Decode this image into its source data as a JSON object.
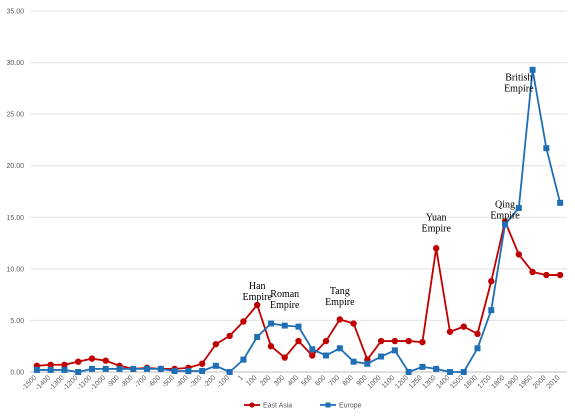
{
  "chart_data": {
    "type": "line",
    "title": "",
    "xlabel": "",
    "ylabel": "",
    "ylim": [
      0,
      35
    ],
    "y_ticks": [
      "0.00",
      "5.00",
      "10.00",
      "15.00",
      "20.00",
      "25.00",
      "30.00",
      "35.00"
    ],
    "grid": "horizontal",
    "legend_position": "bottom",
    "categories": [
      "-1500",
      "-1400",
      "-1300",
      "-1200",
      "-1100",
      "-1000",
      "-900",
      "-800",
      "-700",
      "-600",
      "-500",
      "-400",
      "-300",
      "-200",
      "-100",
      "1",
      "100",
      "200",
      "300",
      "400",
      "500",
      "600",
      "700",
      "800",
      "900",
      "1000",
      "1100",
      "1200",
      "1250",
      "1300",
      "1400",
      "1500",
      "1600",
      "1700",
      "1800",
      "1900",
      "1950",
      "2000",
      "2010"
    ],
    "series": [
      {
        "name": "East Asia",
        "color": "#c00000",
        "marker": "circle",
        "values": [
          0.6,
          0.7,
          0.7,
          1.0,
          1.3,
          1.1,
          0.6,
          0.3,
          0.4,
          0.3,
          0.3,
          0.4,
          0.8,
          2.7,
          3.5,
          4.9,
          6.5,
          2.5,
          1.4,
          3.0,
          1.6,
          3.0,
          5.1,
          4.7,
          1.2,
          3.0,
          3.0,
          3.0,
          2.9,
          12.0,
          3.9,
          4.4,
          3.7,
          8.8,
          14.6,
          11.4,
          9.7,
          9.4,
          9.4
        ]
      },
      {
        "name": "Europe",
        "color": "#1f6fb5",
        "marker": "square",
        "values": [
          0.2,
          0.2,
          0.2,
          0.0,
          0.3,
          0.3,
          0.3,
          0.3,
          0.3,
          0.3,
          0.1,
          0.1,
          0.1,
          0.6,
          0.0,
          1.2,
          3.4,
          4.7,
          4.5,
          4.4,
          2.2,
          1.6,
          2.3,
          1.0,
          0.8,
          1.5,
          2.1,
          0.0,
          0.5,
          0.3,
          0.0,
          0.0,
          2.3,
          6.0,
          14.3,
          15.9,
          29.3,
          21.7,
          16.4
        ]
      }
    ],
    "annotations": [
      {
        "lines": [
          "Han",
          "Empire"
        ],
        "x": "100",
        "y": 7.0
      },
      {
        "lines": [
          "Roman",
          "Empire"
        ],
        "x": "300",
        "y": 6.2
      },
      {
        "lines": [
          "Tang",
          "Empire"
        ],
        "x": "700",
        "y": 6.5
      },
      {
        "lines": [
          "Yuan",
          "Empire"
        ],
        "x": "1300",
        "y": 13.6
      },
      {
        "lines": [
          "Qing",
          "Empire"
        ],
        "x": "1800",
        "y": 14.9
      },
      {
        "lines": [
          "British",
          "Empire"
        ],
        "x": "1900",
        "y": 27.2
      }
    ]
  }
}
